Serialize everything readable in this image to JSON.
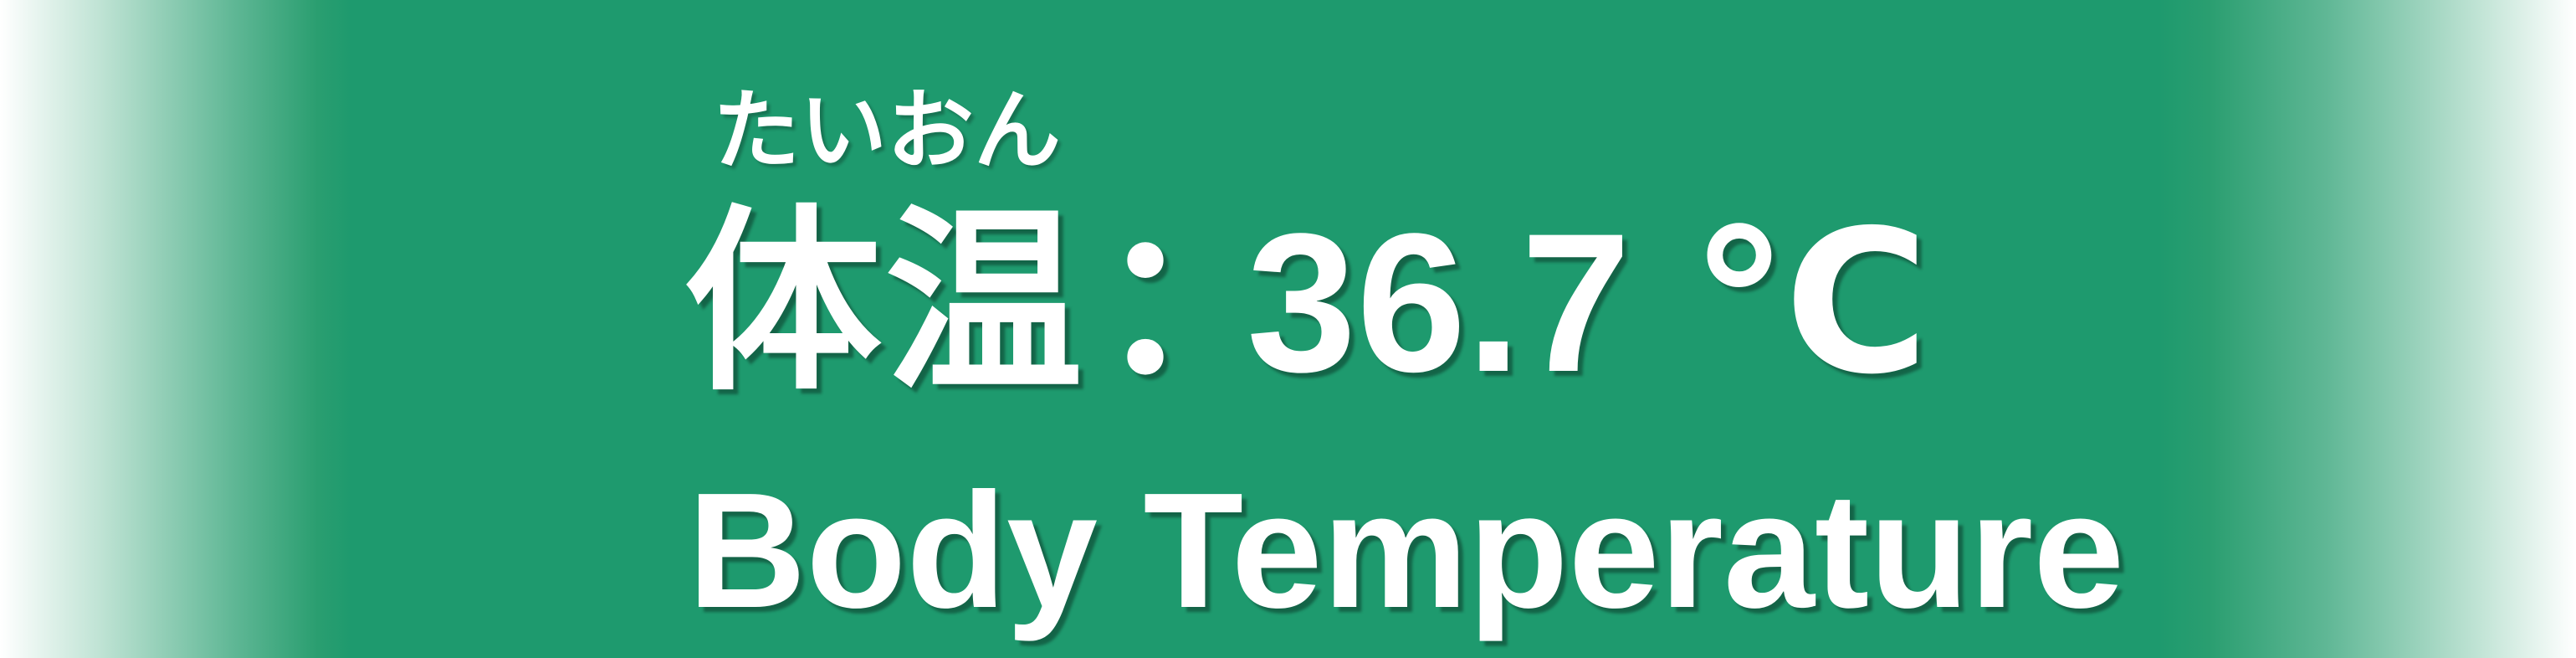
{
  "sign": {
    "furigana": "たいおん",
    "label_jp": "体温",
    "separator": "：",
    "value": "36.7",
    "unit": "℃",
    "label_en": "Body Temperature"
  },
  "colors": {
    "background": "#1e9a6e",
    "text": "#ffffff"
  }
}
